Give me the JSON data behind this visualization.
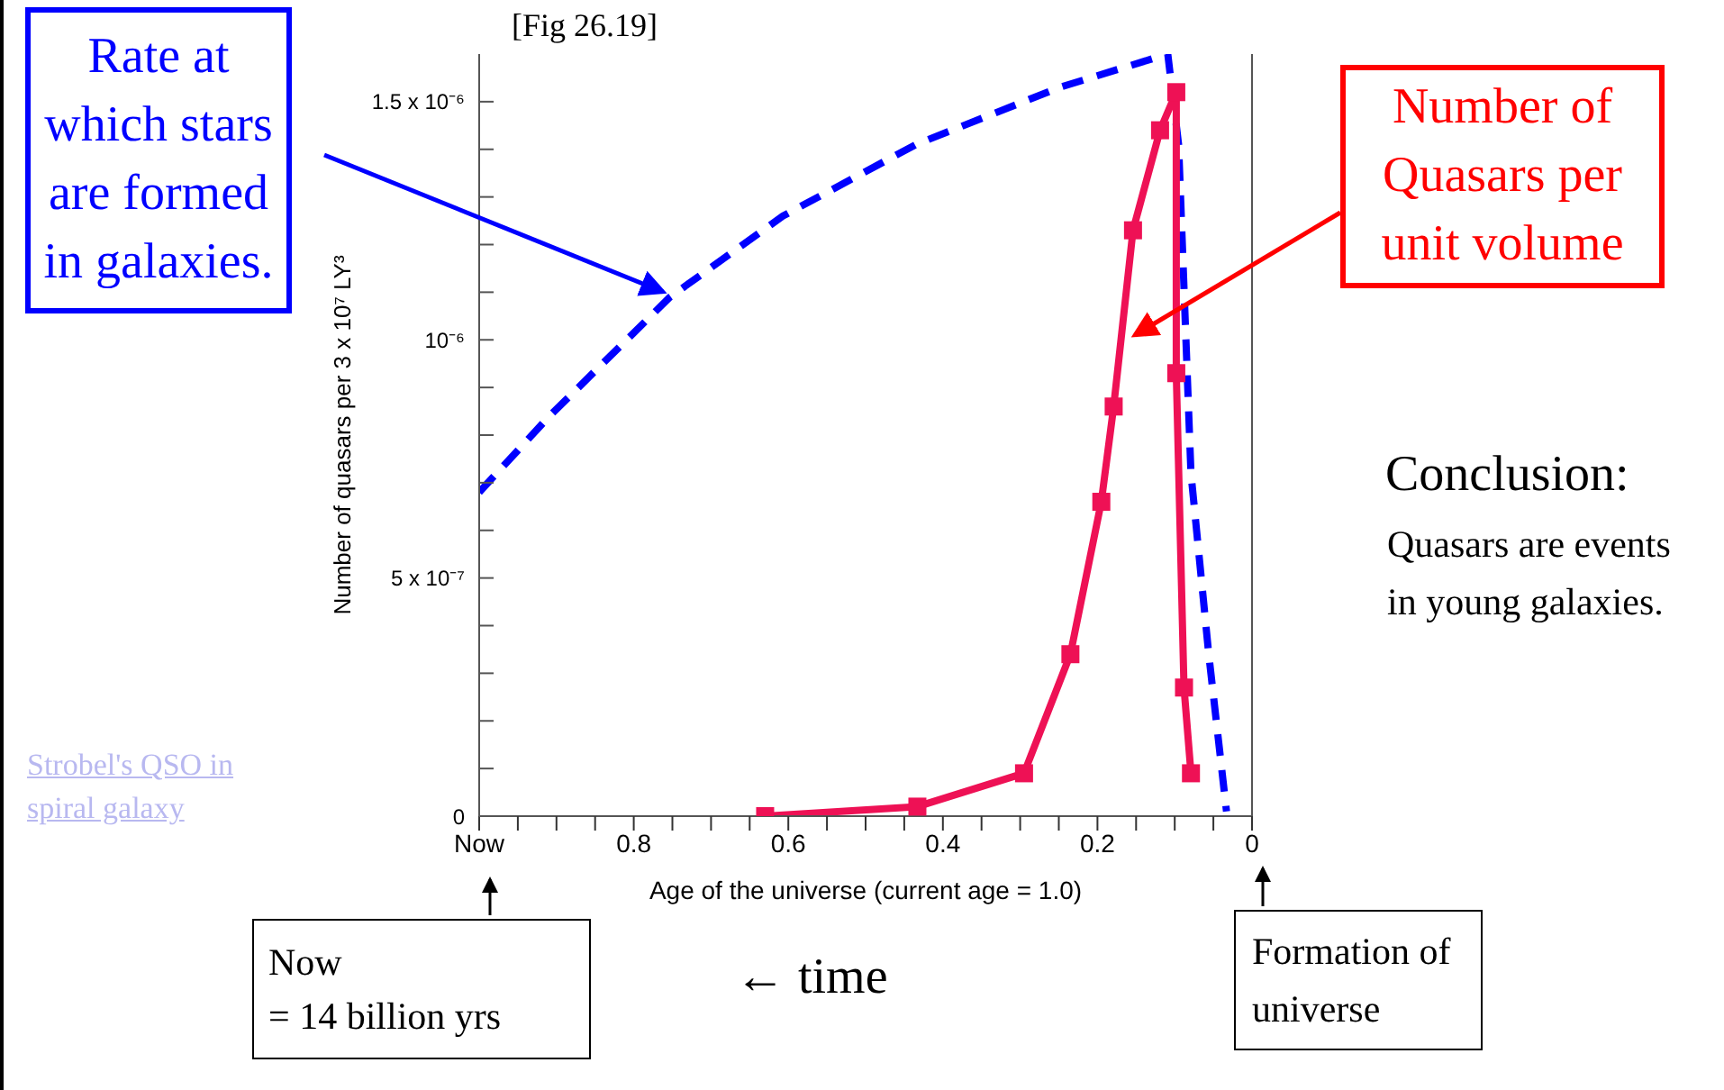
{
  "chart_data": {
    "type": "line",
    "ylabel": "Number of quasars per 3 x 10⁷ LY³",
    "xlabel": "Age of the universe (current age = 1.0)",
    "xlim": [
      1,
      0
    ],
    "xticks": [
      {
        "value": 1,
        "label": "Now"
      },
      {
        "value": 0.95,
        "label": null
      },
      {
        "value": 0.9,
        "label": null
      },
      {
        "value": 0.85,
        "label": null
      },
      0.8,
      {
        "value": 0.75,
        "label": null
      },
      {
        "value": 0.7,
        "label": null
      },
      {
        "value": 0.65,
        "label": null
      },
      0.6,
      {
        "value": 0.55,
        "label": null
      },
      {
        "value": 0.5,
        "label": null
      },
      {
        "value": 0.45,
        "label": null
      },
      0.4,
      {
        "value": 0.35,
        "label": null
      },
      {
        "value": 0.3,
        "label": null
      },
      {
        "value": 0.25,
        "label": null
      },
      0.2,
      {
        "value": 0.15,
        "label": null
      },
      {
        "value": 0.1,
        "label": null
      },
      {
        "value": 0.05,
        "label": null
      },
      0
    ],
    "ylim": [
      0,
      1.6e-06
    ],
    "yticks": [
      0,
      {
        "value": 1e-07,
        "label": null
      },
      {
        "value": 2e-07,
        "label": null
      },
      {
        "value": 3e-07,
        "label": null
      },
      {
        "value": 4e-07,
        "label": null
      },
      {
        "value": 5e-07,
        "label": "5 x 10⁻⁷"
      },
      {
        "value": 6e-07,
        "label": null
      },
      {
        "value": 7e-07,
        "label": null
      },
      {
        "value": 8e-07,
        "label": null
      },
      {
        "value": 9e-07,
        "label": null
      },
      {
        "value": 1e-06,
        "label": "10⁻⁶"
      },
      {
        "value": 1.1e-06,
        "label": null
      },
      {
        "value": 1.2e-06,
        "label": null
      },
      {
        "value": 1.3e-06,
        "label": null
      },
      {
        "value": 1.4e-06,
        "label": null
      },
      {
        "value": 1.5e-06,
        "label": "1.5 x 10⁻⁶"
      }
    ],
    "grid": false,
    "legend": false,
    "series": [
      {
        "color": "#0000ff",
        "line_style": "dashed",
        "marker": "none",
        "x": [
          1,
          0.909,
          0.753,
          0.607,
          0.435,
          0.249,
          0.109,
          0.095,
          0.079,
          0.056,
          0.033
        ],
        "values": [
          6.8e-07,
          8.4e-07,
          1.09e-06,
          1.26e-06,
          1.41e-06,
          1.53e-06,
          1.6e-06,
          1.41e-06,
          7.2e-07,
          3.4e-07,
          1e-08
        ]
      },
      {
        "color": "#ee1155",
        "line_style": "solid",
        "marker": "square",
        "x": [
          0.63,
          0.433,
          0.295,
          0.235,
          0.195,
          0.179,
          0.154,
          0.119,
          0.098,
          0.098,
          0.088,
          0.079
        ],
        "values": [
          0,
          2e-08,
          9e-08,
          3.4e-07,
          6.6e-07,
          8.6e-07,
          1.23e-06,
          1.44e-06,
          1.52e-06,
          9.3e-07,
          2.7e-07,
          9e-08
        ]
      }
    ],
    "annotations": [
      "[Fig 26.19]",
      "Rate at which stars are formed in galaxies.",
      "Number of Quasars per unit volume",
      "Conclusion:",
      "Quasars are events in young galaxies.",
      "Strobel's QSO in spiral galaxy",
      "Now\n= 14 billion yrs",
      "← time",
      "Formation of universe"
    ]
  }
}
